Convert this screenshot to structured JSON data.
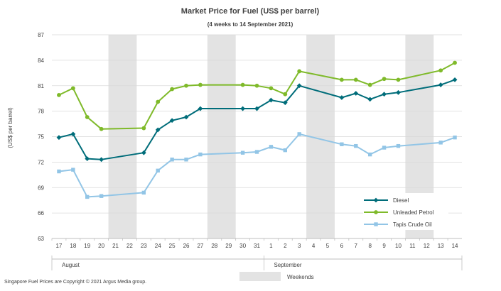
{
  "chart_data": {
    "type": "line",
    "title": "Market Price for Fuel  (US$  per barrel)",
    "subtitle": "(4 weeks to 14 September 2021)",
    "ylabel": "(US$ per barrel)",
    "ylim": [
      63,
      87
    ],
    "yticks": [
      63,
      66,
      69,
      72,
      75,
      78,
      81,
      84,
      87
    ],
    "ytick_labels": [
      "63",
      "66",
      "69",
      "72",
      "75",
      "78",
      "81",
      "84",
      "87"
    ],
    "categories": [
      "17",
      "18",
      "19",
      "20",
      "21",
      "22",
      "23",
      "24",
      "25",
      "26",
      "27",
      "28",
      "29",
      "30",
      "31",
      "1",
      "2",
      "3",
      "4",
      "5",
      "6",
      "7",
      "8",
      "9",
      "10",
      "11",
      "12",
      "13",
      "14"
    ],
    "months": [
      {
        "label": "August",
        "start_index": 0,
        "end_index": 14
      },
      {
        "label": "September",
        "start_index": 15,
        "end_index": 28
      }
    ],
    "weekend_pairs": [
      [
        4,
        5
      ],
      [
        11,
        12
      ],
      [
        18,
        19
      ],
      [
        25,
        26
      ]
    ],
    "weekend_label": "Weekends",
    "series": [
      {
        "name": "Diesel",
        "color": "#006d7a",
        "marker": "diamond",
        "values": [
          74.9,
          75.3,
          72.4,
          72.3,
          null,
          null,
          73.1,
          75.8,
          76.9,
          77.3,
          78.3,
          null,
          null,
          78.3,
          78.3,
          79.3,
          79.0,
          81.0,
          null,
          null,
          79.6,
          80.1,
          79.4,
          80.0,
          80.2,
          null,
          null,
          81.1,
          81.7
        ]
      },
      {
        "name": "Unleaded Petrol",
        "color": "#7fba2a",
        "marker": "circle",
        "values": [
          79.9,
          80.7,
          77.3,
          75.9,
          null,
          null,
          76.0,
          79.1,
          80.6,
          81.0,
          81.1,
          null,
          null,
          81.1,
          81.0,
          80.7,
          80.0,
          82.7,
          null,
          null,
          81.7,
          81.7,
          81.1,
          81.8,
          81.7,
          null,
          null,
          82.8,
          83.7
        ]
      },
      {
        "name": "Tapis Crude Oil",
        "color": "#92c5e6",
        "marker": "square",
        "values": [
          70.9,
          71.1,
          67.9,
          68.0,
          null,
          null,
          68.4,
          71.0,
          72.3,
          72.3,
          72.9,
          null,
          null,
          73.1,
          73.2,
          73.8,
          73.4,
          75.3,
          null,
          null,
          74.1,
          73.9,
          72.9,
          73.7,
          73.9,
          null,
          null,
          74.3,
          74.9
        ]
      }
    ],
    "legend_position": "bottom-right",
    "footnote": "Singapore  Fuel Prices are Copyright  ©  2021  Argus Media group.",
    "grid": true
  }
}
